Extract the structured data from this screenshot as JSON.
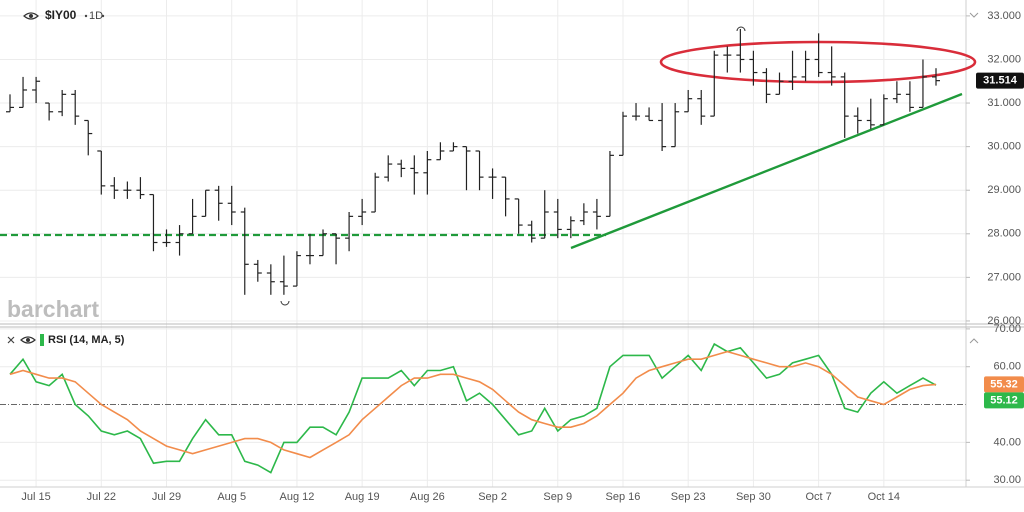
{
  "chart_data": [
    {
      "type": "ohlc",
      "title": "$IY00",
      "interval": "1D",
      "watermark": "barchart",
      "categories": [
        null,
        null,
        "Jul 15",
        null,
        null,
        null,
        null,
        "Jul 22",
        null,
        null,
        null,
        null,
        "Jul 29",
        null,
        null,
        null,
        null,
        "Aug 5",
        null,
        null,
        null,
        null,
        "Aug 12",
        null,
        null,
        null,
        null,
        "Aug 19",
        null,
        null,
        null,
        null,
        "Aug 26",
        null,
        null,
        null,
        null,
        "Sep 2",
        null,
        null,
        null,
        null,
        "Sep 9",
        null,
        null,
        null,
        null,
        "Sep 16",
        null,
        null,
        null,
        null,
        "Sep 23",
        null,
        null,
        null,
        null,
        "Sep 30",
        null,
        null,
        null,
        null,
        "Oct 7",
        null,
        null,
        null,
        null,
        "Oct 14",
        null,
        null,
        null,
        null
      ],
      "open": [
        30.8,
        30.9,
        31.3,
        31.0,
        30.8,
        31.2,
        30.6,
        29.9,
        29.1,
        29.0,
        29.0,
        28.9,
        27.8,
        27.8,
        28.0,
        28.4,
        29.0,
        28.7,
        28.5,
        27.3,
        27.1,
        26.9,
        26.8,
        27.5,
        27.5,
        28.0,
        27.9,
        28.4,
        28.5,
        29.3,
        29.6,
        29.5,
        29.4,
        29.7,
        29.9,
        30.0,
        29.9,
        29.3,
        29.3,
        28.8,
        28.2,
        27.9,
        28.5,
        28.1,
        28.3,
        28.5,
        28.4,
        29.8,
        30.7,
        30.7,
        30.6,
        30.0,
        30.8,
        31.1,
        30.7,
        32.1,
        32.1,
        32.0,
        31.7,
        31.2,
        31.5,
        31.6,
        32.0,
        31.7,
        31.6,
        30.7,
        30.6,
        30.5,
        31.1,
        31.2,
        30.9,
        31.6
      ],
      "high": [
        31.2,
        31.6,
        31.6,
        31.0,
        31.3,
        31.3,
        30.6,
        29.9,
        29.3,
        29.2,
        29.3,
        28.9,
        28.1,
        28.2,
        28.8,
        29.0,
        29.1,
        29.1,
        28.6,
        27.4,
        27.3,
        27.5,
        27.6,
        28.0,
        28.1,
        28.0,
        28.5,
        28.8,
        29.4,
        29.8,
        29.7,
        29.8,
        29.9,
        30.1,
        30.1,
        30.0,
        29.9,
        29.5,
        29.3,
        28.8,
        28.3,
        29.0,
        28.8,
        28.4,
        28.7,
        28.8,
        29.9,
        30.8,
        31.0,
        30.9,
        31.0,
        31.0,
        31.3,
        31.3,
        32.2,
        32.3,
        32.7,
        32.2,
        31.8,
        31.7,
        32.2,
        32.2,
        32.6,
        32.3,
        31.7,
        30.9,
        31.1,
        31.2,
        31.5,
        31.5,
        32.0,
        31.8
      ],
      "low": [
        30.8,
        30.9,
        31.0,
        30.6,
        30.7,
        30.5,
        29.8,
        28.9,
        28.8,
        28.8,
        28.8,
        27.6,
        27.7,
        27.5,
        28.0,
        28.4,
        28.3,
        28.2,
        26.6,
        26.9,
        26.6,
        26.6,
        26.8,
        27.3,
        27.5,
        27.3,
        27.6,
        28.2,
        28.5,
        29.2,
        29.3,
        28.9,
        28.9,
        29.7,
        29.9,
        29.0,
        29.0,
        28.8,
        28.4,
        28.0,
        27.8,
        27.9,
        27.9,
        27.9,
        28.2,
        28.1,
        28.4,
        29.8,
        30.6,
        30.6,
        29.9,
        30.0,
        30.8,
        30.5,
        30.7,
        31.7,
        31.7,
        31.4,
        31.0,
        31.2,
        31.3,
        31.5,
        31.6,
        31.4,
        30.2,
        30.3,
        30.4,
        30.5,
        31.0,
        30.8,
        30.9,
        31.4
      ],
      "close": [
        30.9,
        31.3,
        31.5,
        30.8,
        31.2,
        30.7,
        30.3,
        29.1,
        29.0,
        29.0,
        28.9,
        27.8,
        27.8,
        28.0,
        28.4,
        29.0,
        28.7,
        28.5,
        27.3,
        27.1,
        26.9,
        26.8,
        27.5,
        27.5,
        28.0,
        27.9,
        28.4,
        28.5,
        29.3,
        29.6,
        29.5,
        29.4,
        29.7,
        29.9,
        30.0,
        29.9,
        29.3,
        29.3,
        28.8,
        28.2,
        27.9,
        28.5,
        28.1,
        28.3,
        28.5,
        28.4,
        29.8,
        30.7,
        30.7,
        30.6,
        30.0,
        30.8,
        31.1,
        30.7,
        32.1,
        32.1,
        32.0,
        31.7,
        31.2,
        31.5,
        31.6,
        32.0,
        31.7,
        31.6,
        30.7,
        30.6,
        30.5,
        31.1,
        31.2,
        30.9,
        31.6,
        31.514
      ],
      "color": "#222222",
      "ylim": [
        25.93,
        33.25
      ],
      "yticks": [
        {
          "value": 26,
          "label": "26.000"
        },
        {
          "value": 27,
          "label": "27.000"
        },
        {
          "value": 28,
          "label": "28.000"
        },
        {
          "value": 29,
          "label": "29.000"
        },
        {
          "value": 30,
          "label": "30.000"
        },
        {
          "value": 31,
          "label": "31.000"
        },
        {
          "value": 32,
          "label": "32.000"
        },
        {
          "value": 33,
          "label": "33.000"
        }
      ],
      "grid": true
    },
    {
      "type": "line",
      "title": "RSI (14, MA, 5)",
      "series": [
        {
          "color": "#2db84a",
          "values": [
            58,
            62,
            56,
            55,
            58,
            50,
            47,
            43,
            42,
            43,
            41,
            34.5,
            35,
            35,
            41,
            46,
            42,
            42,
            35,
            34,
            32,
            40,
            40,
            44,
            44,
            42,
            48,
            57,
            57,
            57,
            59,
            55,
            59,
            59,
            60,
            51,
            53,
            50,
            46,
            42,
            43,
            49,
            43,
            46,
            47,
            49,
            60,
            63,
            63,
            63,
            57,
            60,
            63,
            59,
            66,
            64,
            65,
            61,
            57,
            58,
            61,
            62,
            63,
            58,
            49,
            48,
            53,
            56,
            53,
            55,
            57,
            55.12
          ]
        },
        {
          "color": "#f28c4b",
          "values": [
            58,
            59,
            58,
            57,
            57,
            56,
            53,
            50,
            48,
            46,
            43,
            41,
            39,
            38,
            37,
            38,
            39,
            40,
            41,
            41,
            40,
            38,
            37,
            36,
            38,
            40,
            42,
            46,
            49,
            52,
            55,
            57,
            57,
            58,
            58,
            57,
            56,
            54,
            51,
            48,
            46,
            45,
            44,
            44,
            45,
            47,
            50,
            53,
            57,
            59,
            60,
            61,
            62,
            62,
            63,
            64,
            63,
            62,
            61,
            60,
            60,
            61,
            60,
            58,
            55,
            52,
            51,
            50,
            52,
            54,
            55,
            55.32
          ]
        }
      ],
      "midline": 50,
      "ylim": [
        28.2,
        70.5
      ],
      "yticks": [
        {
          "value": 30,
          "label": "30.00"
        },
        {
          "value": 40,
          "label": "40.00"
        },
        {
          "value": 60,
          "label": "60.00"
        },
        {
          "value": 70,
          "label": "70.00"
        }
      ],
      "grid": true
    }
  ]
}
